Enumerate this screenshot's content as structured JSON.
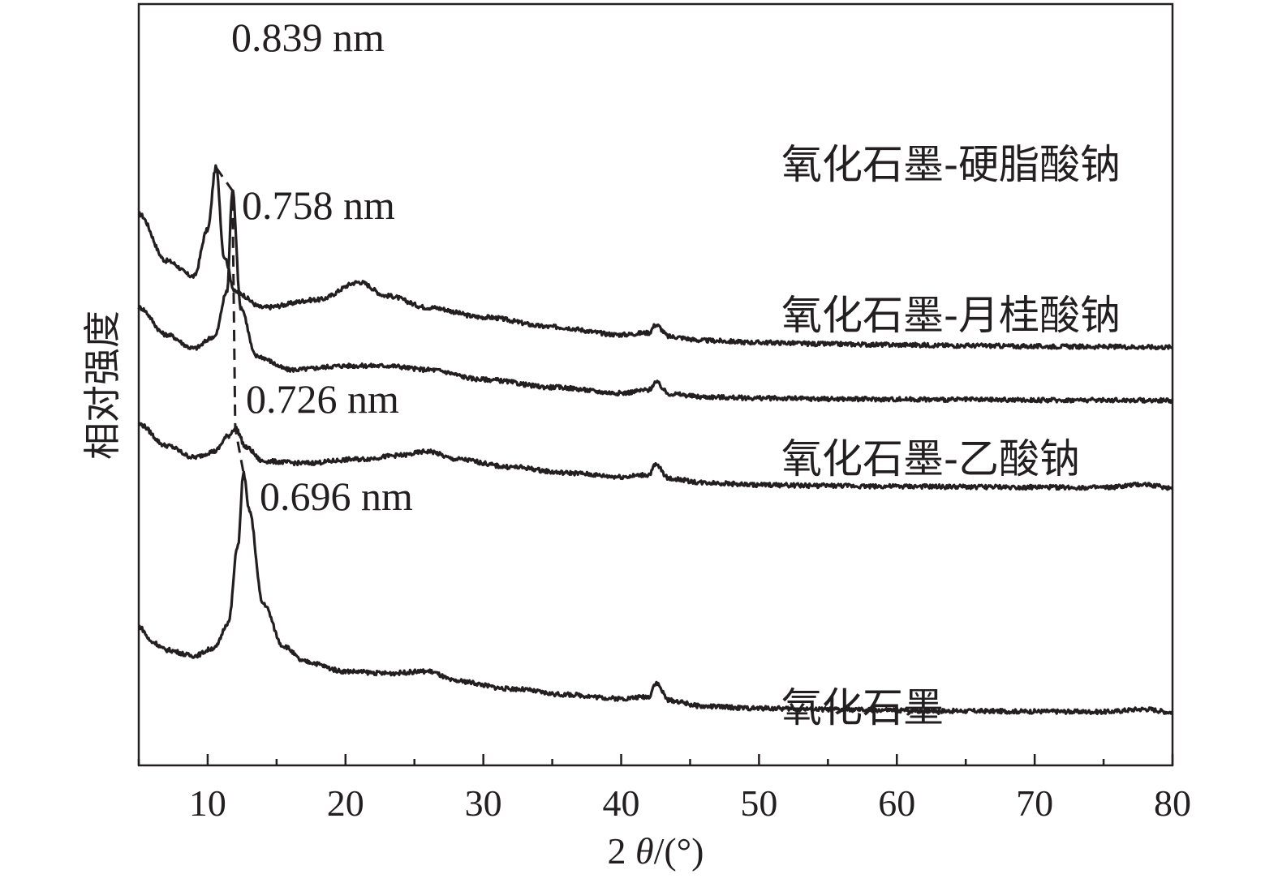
{
  "chart_data": {
    "type": "line",
    "title": "",
    "xlabel": "2θ/(°)",
    "ylabel": "相对强度",
    "xlim": [
      5,
      80
    ],
    "x_ticks": [
      10,
      20,
      30,
      40,
      50,
      60,
      70,
      80
    ],
    "x_minor_step": 5,
    "y_ticks_shown": false,
    "grid": false,
    "stacked_offset": true,
    "series": [
      {
        "name": "氧化石墨-硬脂酸钠",
        "peak_label": "0.839 nm",
        "x": [
          5,
          7,
          9,
          10,
          10.6,
          11.2,
          12,
          14,
          18,
          21,
          23,
          26,
          30,
          35,
          40,
          42,
          42.5,
          43.5,
          46,
          50,
          55,
          60,
          65,
          70,
          75,
          80
        ],
        "y": [
          7.0,
          5.8,
          5.4,
          6.6,
          8.2,
          5.9,
          5.0,
          4.6,
          4.8,
          5.25,
          4.9,
          4.6,
          4.35,
          4.1,
          3.9,
          3.95,
          4.15,
          3.85,
          3.75,
          3.7,
          3.66,
          3.64,
          3.62,
          3.6,
          3.59,
          3.58
        ]
      },
      {
        "name": "氧化石墨-月桂酸钠",
        "peak_label": "0.758 nm",
        "x": [
          5,
          7,
          9,
          10.5,
          11.4,
          11.8,
          12.4,
          13.5,
          16,
          20,
          23,
          26,
          30,
          35,
          40,
          42,
          42.5,
          43.5,
          46,
          50,
          55,
          60,
          65,
          70,
          75,
          80
        ],
        "y": [
          4.6,
          3.9,
          3.55,
          3.85,
          5.0,
          7.6,
          4.6,
          3.35,
          3.0,
          3.1,
          3.1,
          3.0,
          2.75,
          2.55,
          2.4,
          2.48,
          2.67,
          2.38,
          2.3,
          2.27,
          2.25,
          2.24,
          2.23,
          2.22,
          2.22,
          2.21
        ]
      },
      {
        "name": "氧化石墨-乙酸钠",
        "peak_label": "0.726 nm",
        "x": [
          5,
          7,
          9,
          10.5,
          11.5,
          12,
          12.8,
          14,
          17,
          21,
          24,
          26,
          28,
          32,
          36,
          40,
          42,
          42.5,
          43.5,
          46,
          50,
          55,
          60,
          65,
          70,
          75,
          78,
          80
        ],
        "y": [
          1.6,
          1.05,
          0.75,
          0.9,
          1.3,
          1.5,
          1.0,
          0.65,
          0.6,
          0.7,
          0.8,
          0.9,
          0.7,
          0.5,
          0.35,
          0.25,
          0.3,
          0.55,
          0.2,
          0.1,
          0.04,
          0.02,
          0.0,
          -0.01,
          -0.02,
          -0.03,
          0.05,
          -0.04
        ]
      },
      {
        "name": "氧化石墨",
        "peak_label": "0.696 nm",
        "x": [
          5,
          6,
          7,
          9,
          10.5,
          11.5,
          12.2,
          12.6,
          13,
          14,
          15.5,
          17,
          20,
          23,
          26,
          28,
          32,
          36,
          40,
          42,
          42.5,
          43.5,
          46,
          50,
          55,
          60,
          65,
          70,
          75,
          78,
          80
        ],
        "y": [
          -3.6,
          -4.0,
          -4.2,
          -4.35,
          -4.15,
          -3.5,
          -1.5,
          0.35,
          -0.6,
          -3.0,
          -4.1,
          -4.5,
          -4.75,
          -4.8,
          -4.75,
          -5.0,
          -5.2,
          -5.35,
          -5.45,
          -5.4,
          -5.05,
          -5.5,
          -5.65,
          -5.7,
          -5.73,
          -5.75,
          -5.77,
          -5.78,
          -5.79,
          -5.72,
          -5.8
        ]
      }
    ],
    "guide": {
      "style": "dashed",
      "through_peaks_x": [
        10.6,
        11.8,
        12.0,
        12.6
      ]
    }
  }
}
